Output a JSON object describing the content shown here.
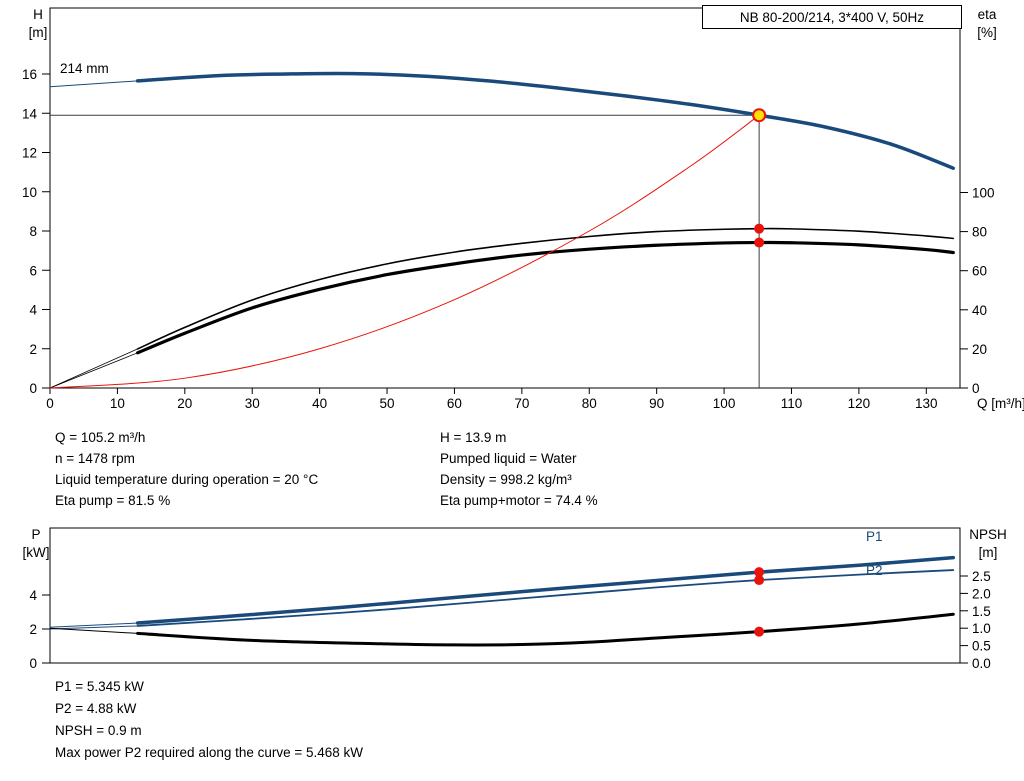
{
  "colors": {
    "blue": "#1a4a7c",
    "red": "#e8140c",
    "black": "#000000",
    "yellow": "#ffe000",
    "crosshair": "#3c3c3c"
  },
  "operating_data": {
    "left": [
      "Q = 105.2 m³/h",
      "n = 1478 rpm",
      "Liquid temperature during operation = 20 °C",
      "Eta pump = 81.5 %"
    ],
    "right": [
      "H = 13.9 m",
      "Pumped liquid = Water",
      "Density = 998.2 kg/m³",
      "Eta pump+motor = 74.4 %"
    ]
  },
  "power_data": [
    "P1 = 5.345 kW",
    "P2 = 4.88 kW",
    "NPSH = 0.9 m",
    "Max power P2 required along the curve = 5.468 kW"
  ],
  "chart_data": [
    {
      "type": "line",
      "title": "NB 80-200/214, 3*400 V, 50Hz",
      "xlabel": "Q [m³/h]",
      "ylabel_left_title": "H",
      "ylabel_left_unit": "[m]",
      "ylabel_right_title": "eta",
      "ylabel_right_unit": "[%]",
      "impeller_label": "214 mm",
      "xlim": [
        0,
        135
      ],
      "ylim_left": [
        0,
        16
      ],
      "ylim_right": [
        0,
        100
      ],
      "x_ticks": [
        0,
        10,
        20,
        30,
        40,
        50,
        60,
        70,
        80,
        90,
        100,
        110,
        120,
        130
      ],
      "y_left_ticks": [
        0,
        2,
        4,
        6,
        8,
        10,
        12,
        14,
        16
      ],
      "y_right_ticks": [
        0,
        20,
        40,
        60,
        80,
        100
      ],
      "duty_point": {
        "q": 105.2,
        "h": 13.9
      },
      "series": [
        {
          "name": "head-lead",
          "axis": "H",
          "color": "blue",
          "width": 1,
          "points": [
            [
              0,
              15.35
            ],
            [
              13,
              15.65
            ]
          ]
        },
        {
          "name": "head",
          "axis": "H",
          "color": "blue",
          "width": 3.5,
          "points": [
            [
              13,
              15.65
            ],
            [
              25,
              15.92
            ],
            [
              35,
              16.0
            ],
            [
              45,
              16.02
            ],
            [
              55,
              15.9
            ],
            [
              65,
              15.65
            ],
            [
              75,
              15.3
            ],
            [
              85,
              14.9
            ],
            [
              95,
              14.45
            ],
            [
              105.2,
              13.9
            ],
            [
              115,
              13.3
            ],
            [
              125,
              12.4
            ],
            [
              134,
              11.2
            ]
          ]
        },
        {
          "name": "eta-pump-lead",
          "axis": "eta",
          "color": "black",
          "width": 0.8,
          "points": [
            [
              0,
              0
            ],
            [
              13,
              20
            ]
          ]
        },
        {
          "name": "eta-pump",
          "axis": "eta",
          "color": "black",
          "width": 1.6,
          "points": [
            [
              13,
              20
            ],
            [
              20,
              31
            ],
            [
              30,
              45
            ],
            [
              40,
              55.5
            ],
            [
              50,
              63.5
            ],
            [
              60,
              69.5
            ],
            [
              70,
              74
            ],
            [
              80,
              77.5
            ],
            [
              90,
              80
            ],
            [
              100,
              81.2
            ],
            [
              105.2,
              81.5
            ],
            [
              110,
              81.4
            ],
            [
              120,
              80.2
            ],
            [
              130,
              77.8
            ],
            [
              134,
              76.5
            ]
          ]
        },
        {
          "name": "eta-pump-motor-lead",
          "axis": "eta",
          "color": "black",
          "width": 0.8,
          "points": [
            [
              0,
              0
            ],
            [
              13,
              18
            ]
          ]
        },
        {
          "name": "eta-pump-motor",
          "axis": "eta",
          "color": "black",
          "width": 3.2,
          "points": [
            [
              13,
              18
            ],
            [
              20,
              28
            ],
            [
              30,
              41
            ],
            [
              40,
              50.5
            ],
            [
              50,
              58
            ],
            [
              60,
              63.5
            ],
            [
              70,
              68
            ],
            [
              80,
              71
            ],
            [
              90,
              73
            ],
            [
              100,
              74.2
            ],
            [
              105.2,
              74.4
            ],
            [
              110,
              74.3
            ],
            [
              120,
              73.2
            ],
            [
              130,
              70.8
            ],
            [
              134,
              69.3
            ]
          ]
        },
        {
          "name": "system-curve",
          "axis": "H",
          "color": "red",
          "width": 1,
          "points": [
            [
              0,
              0
            ],
            [
              20,
              0.5
            ],
            [
              40,
              2.0
            ],
            [
              60,
              4.5
            ],
            [
              80,
              8.0
            ],
            [
              95,
              11.3
            ],
            [
              105.2,
              13.9
            ]
          ]
        }
      ],
      "markers": [
        {
          "q": 105.2,
          "v": 81.5,
          "axis": "eta"
        },
        {
          "q": 105.2,
          "v": 74.4,
          "axis": "eta"
        }
      ]
    },
    {
      "type": "line",
      "xlabel": "Q [m³/h]",
      "ylabel_left_title": "P",
      "ylabel_left_unit": "[kW]",
      "ylabel_right_title": "NPSH",
      "ylabel_right_unit": "[m]",
      "series_labels": {
        "p1": "P1",
        "p2": "P2"
      },
      "xlim": [
        0,
        135
      ],
      "ylim_left": [
        0,
        4
      ],
      "ylim_right": [
        0,
        2.5
      ],
      "y_left_ticks": [
        0,
        2,
        4
      ],
      "y_right_ticks": [
        "0.0",
        "0.5",
        "1.0",
        "1.5",
        "2.0",
        "2.5"
      ],
      "series": [
        {
          "name": "p1-lead",
          "axis": "P",
          "color": "blue",
          "width": 1,
          "points": [
            [
              0,
              2.1
            ],
            [
              13,
              2.35
            ]
          ]
        },
        {
          "name": "p1",
          "axis": "P",
          "color": "blue",
          "width": 3.5,
          "points": [
            [
              13,
              2.35
            ],
            [
              30,
              2.85
            ],
            [
              50,
              3.5
            ],
            [
              70,
              4.2
            ],
            [
              90,
              4.85
            ],
            [
              105.2,
              5.345
            ],
            [
              120,
              5.75
            ],
            [
              134,
              6.2
            ]
          ]
        },
        {
          "name": "p2-lead",
          "axis": "P",
          "color": "blue",
          "width": 1,
          "points": [
            [
              0,
              2.0
            ],
            [
              13,
              2.18
            ]
          ]
        },
        {
          "name": "p2",
          "axis": "P",
          "color": "blue",
          "width": 1.8,
          "points": [
            [
              13,
              2.18
            ],
            [
              30,
              2.6
            ],
            [
              50,
              3.15
            ],
            [
              70,
              3.8
            ],
            [
              90,
              4.45
            ],
            [
              105.2,
              4.88
            ],
            [
              120,
              5.2
            ],
            [
              134,
              5.468
            ]
          ]
        },
        {
          "name": "npsh-lead",
          "axis": "NPSH",
          "color": "black",
          "width": 1,
          "points": [
            [
              0,
              1.0
            ],
            [
              13,
              0.85
            ]
          ]
        },
        {
          "name": "npsh",
          "axis": "NPSH",
          "color": "black",
          "width": 3,
          "points": [
            [
              13,
              0.85
            ],
            [
              30,
              0.65
            ],
            [
              50,
              0.55
            ],
            [
              60,
              0.52
            ],
            [
              70,
              0.53
            ],
            [
              80,
              0.6
            ],
            [
              90,
              0.72
            ],
            [
              105.2,
              0.9
            ],
            [
              120,
              1.12
            ],
            [
              134,
              1.4
            ]
          ]
        }
      ],
      "markers": [
        {
          "q": 105.2,
          "v": 5.345,
          "axis": "P"
        },
        {
          "q": 105.2,
          "v": 4.88,
          "axis": "P"
        },
        {
          "q": 105.2,
          "v": 0.9,
          "axis": "NPSH"
        }
      ]
    }
  ]
}
